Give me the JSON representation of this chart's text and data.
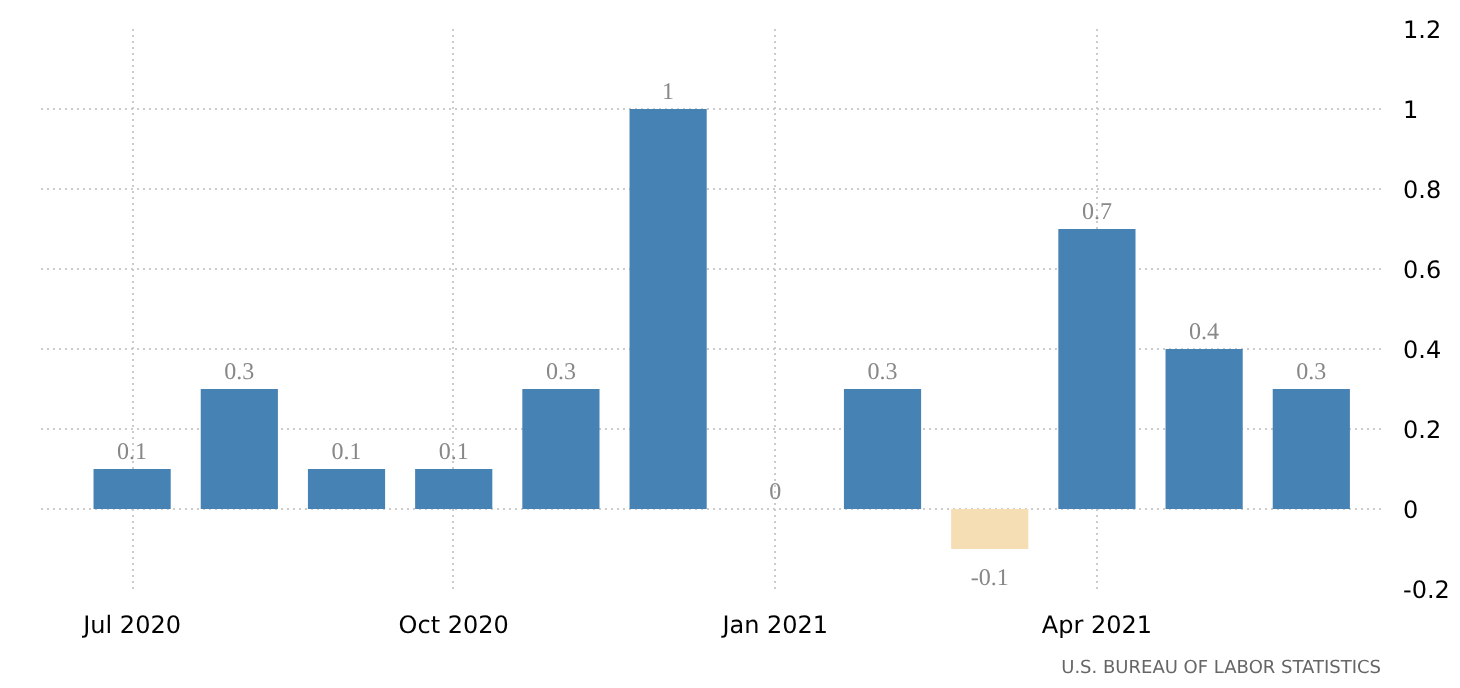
{
  "chart_data": {
    "type": "bar",
    "categories": [
      "Jul 2020",
      null,
      null,
      "Oct 2020",
      null,
      null,
      "Jan 2021",
      null,
      null,
      "Apr 2021",
      null,
      null
    ],
    "values": [
      0.1,
      0.3,
      0.1,
      0.1,
      0.3,
      1,
      0,
      0.3,
      -0.1,
      0.7,
      0.4,
      0.3
    ],
    "colors": [
      "#4682b4",
      "#4682b4",
      "#4682b4",
      "#4682b4",
      "#4682b4",
      "#4682b4",
      "#4682b4",
      "#4682b4",
      "#f5deb3",
      "#4682b4",
      "#4682b4",
      "#4682b4"
    ],
    "ylim": [
      -0.2,
      1.2
    ],
    "yticks": [
      -0.2,
      0,
      0.2,
      0.4,
      0.6,
      0.8,
      1,
      1.2
    ],
    "grid": true,
    "data_labels": true,
    "annotations": [
      "U.S. BUREAU OF LABOR STATISTICS"
    ]
  }
}
